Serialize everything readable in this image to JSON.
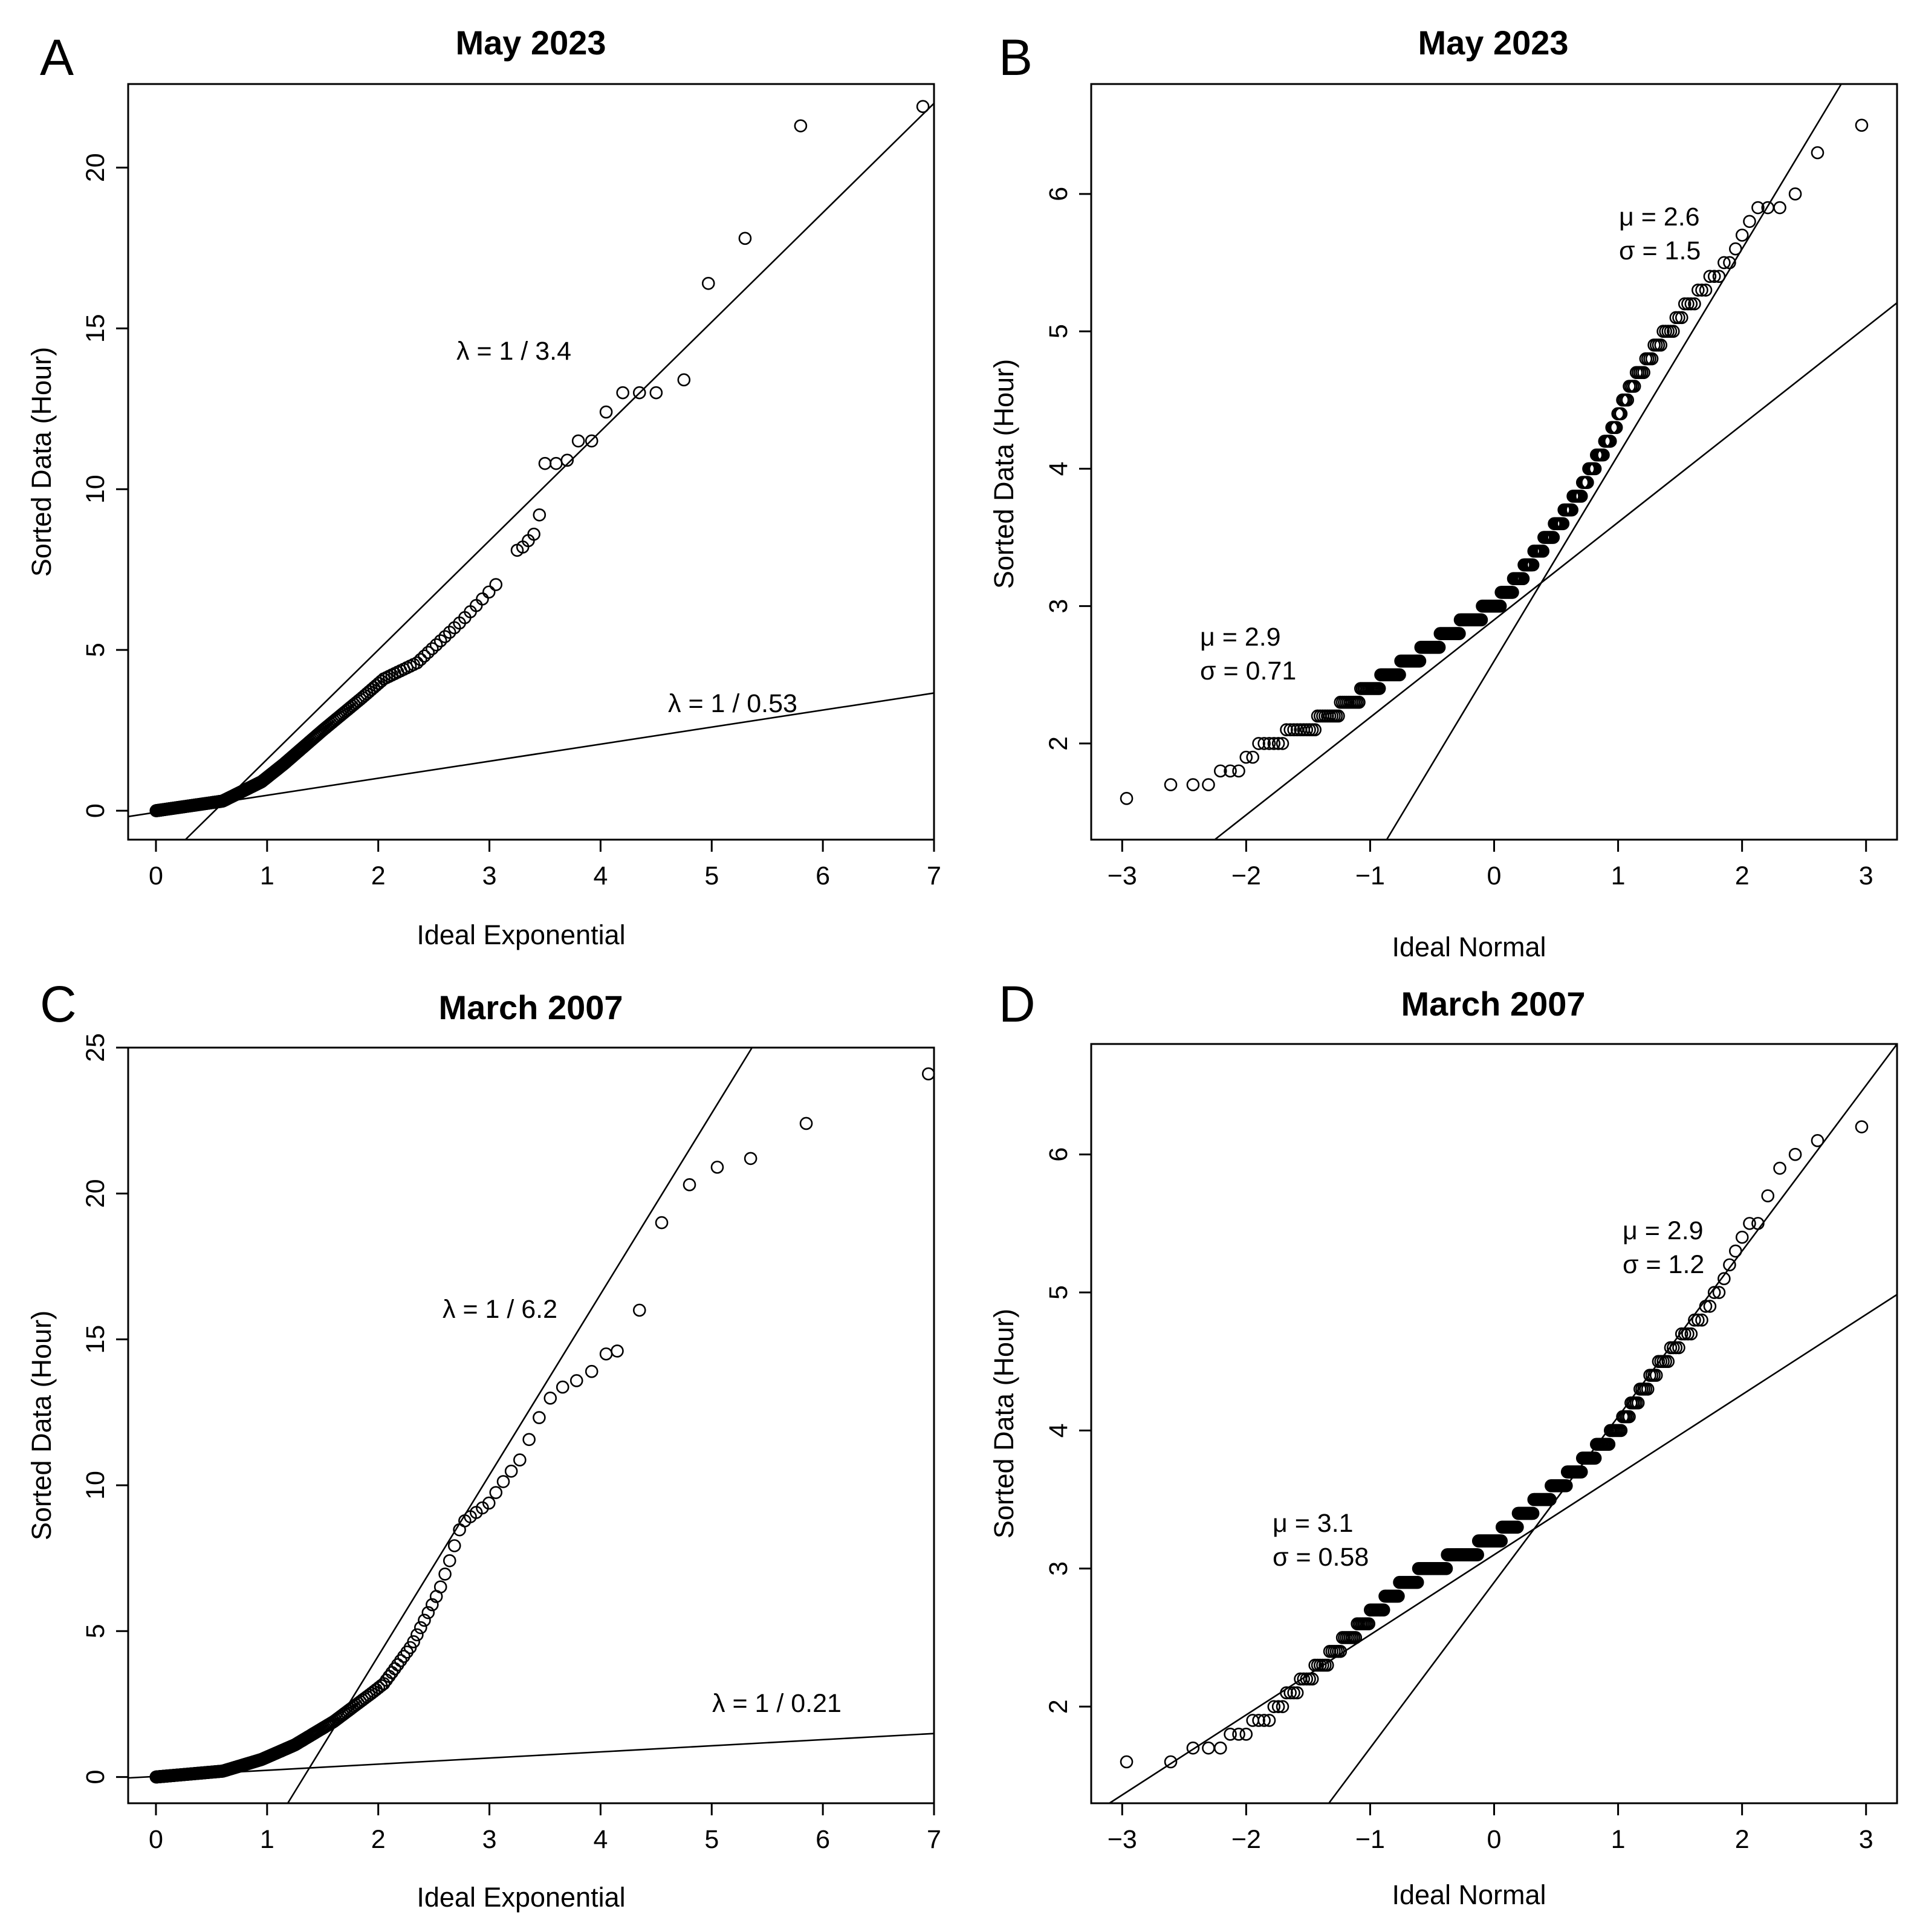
{
  "chart_data": [
    {
      "panel": "A",
      "type": "scatter",
      "title": "May 2023",
      "xlabel": "Ideal Exponential",
      "ylabel": "Sorted Data (Hour)",
      "xlim": [
        -0.25,
        7.0
      ],
      "ylim": [
        -0.9,
        22.6
      ],
      "xticks": [
        0,
        1,
        2,
        3,
        4,
        5,
        6,
        7
      ],
      "yticks": [
        0,
        5,
        10,
        15,
        20
      ],
      "x_quantile": "exponential",
      "n_points": 330,
      "dense_control": [
        [
          0,
          0
        ],
        [
          0.6,
          0.3
        ],
        [
          0.95,
          0.9
        ],
        [
          1.15,
          1.45
        ],
        [
          1.5,
          2.5
        ],
        [
          1.85,
          3.5
        ],
        [
          2.05,
          4.1
        ],
        [
          2.35,
          4.6
        ],
        [
          2.75,
          5.9
        ],
        [
          3.05,
          7.0
        ],
        [
          3.1,
          7.2
        ]
      ],
      "sparse_points": [
        [
          3.25,
          8.1
        ],
        [
          3.3,
          8.2
        ],
        [
          3.35,
          8.4
        ],
        [
          3.4,
          8.6
        ],
        [
          3.45,
          9.2
        ],
        [
          3.5,
          10.8
        ],
        [
          3.6,
          10.8
        ],
        [
          3.7,
          10.9
        ],
        [
          3.8,
          11.5
        ],
        [
          3.92,
          11.5
        ],
        [
          4.05,
          12.4
        ],
        [
          4.2,
          13.0
        ],
        [
          4.35,
          13.0
        ],
        [
          4.5,
          13.0
        ],
        [
          4.75,
          13.4
        ],
        [
          4.97,
          16.4
        ],
        [
          5.3,
          17.8
        ],
        [
          5.8,
          21.3
        ],
        [
          6.9,
          21.9
        ]
      ],
      "fit_lines": [
        {
          "label": "λ = 1 / 3.4",
          "slope": 3.4,
          "intercept": -1.8
        },
        {
          "label": "λ = 1 / 0.53",
          "slope": 0.53,
          "intercept": -0.05
        }
      ],
      "annotations": [
        "λ = 1 / 3.4",
        "λ = 1 / 0.53"
      ]
    },
    {
      "panel": "B",
      "type": "scatter",
      "title": "May 2023",
      "xlabel": "Ideal Normal",
      "ylabel": "Sorted Data (Hour)",
      "xlim": [
        -3.25,
        3.25
      ],
      "ylim": [
        1.3,
        6.8
      ],
      "xticks": [
        -3,
        -2,
        -1,
        0,
        1,
        2,
        3
      ],
      "yticks": [
        2,
        3,
        4,
        5,
        6
      ],
      "x_quantile": "normal",
      "n_points": 330,
      "data_step": 0.1,
      "dense_control": [
        [
          0.0025,
          1.6
        ],
        [
          0.004,
          1.7
        ],
        [
          0.02,
          1.8
        ],
        [
          0.03,
          2.0
        ],
        [
          0.06,
          2.1
        ],
        [
          0.09,
          2.2
        ],
        [
          0.12,
          2.3
        ],
        [
          0.16,
          2.4
        ],
        [
          0.2,
          2.5
        ],
        [
          0.25,
          2.6
        ],
        [
          0.3,
          2.7
        ],
        [
          0.36,
          2.8
        ],
        [
          0.42,
          2.9
        ],
        [
          0.5,
          3.0
        ],
        [
          0.58,
          3.2
        ],
        [
          0.64,
          3.4
        ],
        [
          0.7,
          3.6
        ],
        [
          0.76,
          3.85
        ],
        [
          0.82,
          4.2
        ],
        [
          0.88,
          4.7
        ],
        [
          0.92,
          5.0
        ],
        [
          0.955,
          5.3
        ],
        [
          0.97,
          5.5
        ],
        [
          0.985,
          5.9
        ],
        [
          0.991,
          5.9
        ],
        [
          0.9975,
          6.5
        ]
      ],
      "fit_lines": [
        {
          "label": "μ = 2.9\nσ = 0.71",
          "slope": 0.71,
          "intercept": 2.9
        },
        {
          "label": "μ = 2.6\nσ = 1.5",
          "slope": 1.5,
          "intercept": 2.6
        }
      ],
      "annotations": [
        [
          "μ = 2.9",
          "σ = 0.71"
        ],
        [
          "μ = 2.6",
          "σ = 1.5"
        ]
      ]
    },
    {
      "panel": "C",
      "type": "scatter",
      "title": "March 2007",
      "xlabel": "Ideal Exponential",
      "ylabel": "Sorted Data (Hour)",
      "xlim": [
        -0.25,
        7.0
      ],
      "ylim": [
        -0.9,
        25.0
      ],
      "xticks": [
        0,
        1,
        2,
        3,
        4,
        5,
        6,
        7
      ],
      "yticks": [
        0,
        5,
        10,
        15,
        20,
        25
      ],
      "x_quantile": "exponential",
      "n_points": 330,
      "dense_control": [
        [
          0,
          0
        ],
        [
          0.6,
          0.2
        ],
        [
          0.95,
          0.6
        ],
        [
          1.25,
          1.1
        ],
        [
          1.6,
          1.9
        ],
        [
          1.95,
          2.9
        ],
        [
          2.05,
          3.2
        ],
        [
          2.3,
          4.5
        ],
        [
          2.55,
          6.4
        ],
        [
          2.65,
          7.5
        ],
        [
          2.75,
          8.7
        ],
        [
          3.0,
          9.4
        ],
        [
          3.1,
          10.0
        ],
        [
          3.3,
          11.0
        ],
        [
          3.4,
          12.0
        ],
        [
          3.55,
          13.0
        ],
        [
          3.7,
          13.5
        ],
        [
          3.8,
          13.6
        ]
      ],
      "sparse_points": [
        [
          3.92,
          13.9
        ],
        [
          4.05,
          14.5
        ],
        [
          4.15,
          14.6
        ],
        [
          4.35,
          16.0
        ],
        [
          4.55,
          19.0
        ],
        [
          4.8,
          20.3
        ],
        [
          5.05,
          20.9
        ],
        [
          5.35,
          21.2
        ],
        [
          5.85,
          22.4
        ],
        [
          6.95,
          24.1
        ]
      ],
      "fit_lines": [
        {
          "label": "λ = 1 / 6.2",
          "slope": 6.2,
          "intercept": -8.25
        },
        {
          "label": "λ = 1 / 0.21",
          "slope": 0.21,
          "intercept": 0.02
        }
      ],
      "annotations": [
        "λ = 1 / 6.2",
        "λ = 1 / 0.21"
      ]
    },
    {
      "panel": "D",
      "type": "scatter",
      "title": "March 2007",
      "xlabel": "Ideal Normal",
      "ylabel": "Sorted Data (Hour)",
      "xlim": [
        -3.25,
        3.25
      ],
      "ylim": [
        1.3,
        6.8
      ],
      "xticks": [
        -3,
        -2,
        -1,
        0,
        1,
        2,
        3
      ],
      "yticks": [
        2,
        3,
        4,
        5,
        6
      ],
      "x_quantile": "normal",
      "n_points": 330,
      "data_step": 0.1,
      "dense_control": [
        [
          0.003,
          1.6
        ],
        [
          0.02,
          1.8
        ],
        [
          0.03,
          1.9
        ],
        [
          0.05,
          2.1
        ],
        [
          0.08,
          2.3
        ],
        [
          0.12,
          2.5
        ],
        [
          0.17,
          2.7
        ],
        [
          0.24,
          2.9
        ],
        [
          0.3,
          3.0
        ],
        [
          0.4,
          3.1
        ],
        [
          0.5,
          3.2
        ],
        [
          0.6,
          3.4
        ],
        [
          0.7,
          3.6
        ],
        [
          0.78,
          3.8
        ],
        [
          0.84,
          4.0
        ],
        [
          0.9,
          4.4
        ],
        [
          0.94,
          4.7
        ],
        [
          0.96,
          4.9
        ],
        [
          0.975,
          5.3
        ],
        [
          0.985,
          5.6
        ],
        [
          0.992,
          6.0
        ],
        [
          0.997,
          6.2
        ]
      ],
      "fit_lines": [
        {
          "label": "μ = 3.1\nσ = 0.58",
          "slope": 0.58,
          "intercept": 3.1
        },
        {
          "label": "μ = 2.9\nσ = 1.2",
          "slope": 1.2,
          "intercept": 2.9
        }
      ],
      "annotations": [
        [
          "μ = 3.1",
          "σ = 0.58"
        ],
        [
          "μ = 2.9",
          "σ = 1.2"
        ]
      ]
    }
  ]
}
